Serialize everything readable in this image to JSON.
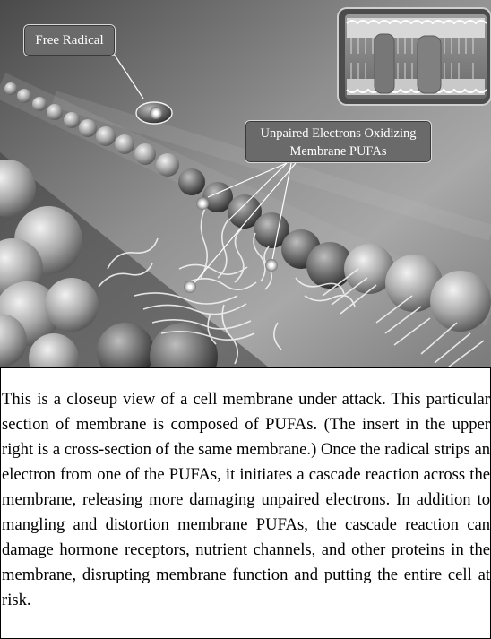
{
  "figure": {
    "labels": {
      "free_radical": "Free Radical",
      "unpaired_line1": "Unpaired Electrons Oxidizing",
      "unpaired_line2": "Membrane PUFAs"
    },
    "colors": {
      "background_light": "#9a9a9a",
      "background_dark": "#3c3c3c",
      "label_fill": "#6a6a6a",
      "label_border": "#d9d9d9"
    }
  },
  "caption": {
    "text": "This is a closeup view of a cell membrane under attack. This particular section of membrane is composed of PUFAs. (The insert in the upper right is a cross-section of the same membrane.) Once the radical strips an electron from one of the PUFAs, it initiates a cascade reaction across the membrane, releasing more damaging unpaired electrons. In addition to mangling and distortion membrane PUFAs, the cascade reaction can damage hormone receptors, nutrient channels, and other proteins in the membrane, disrupting membrane function and putting the entire cell at risk."
  }
}
